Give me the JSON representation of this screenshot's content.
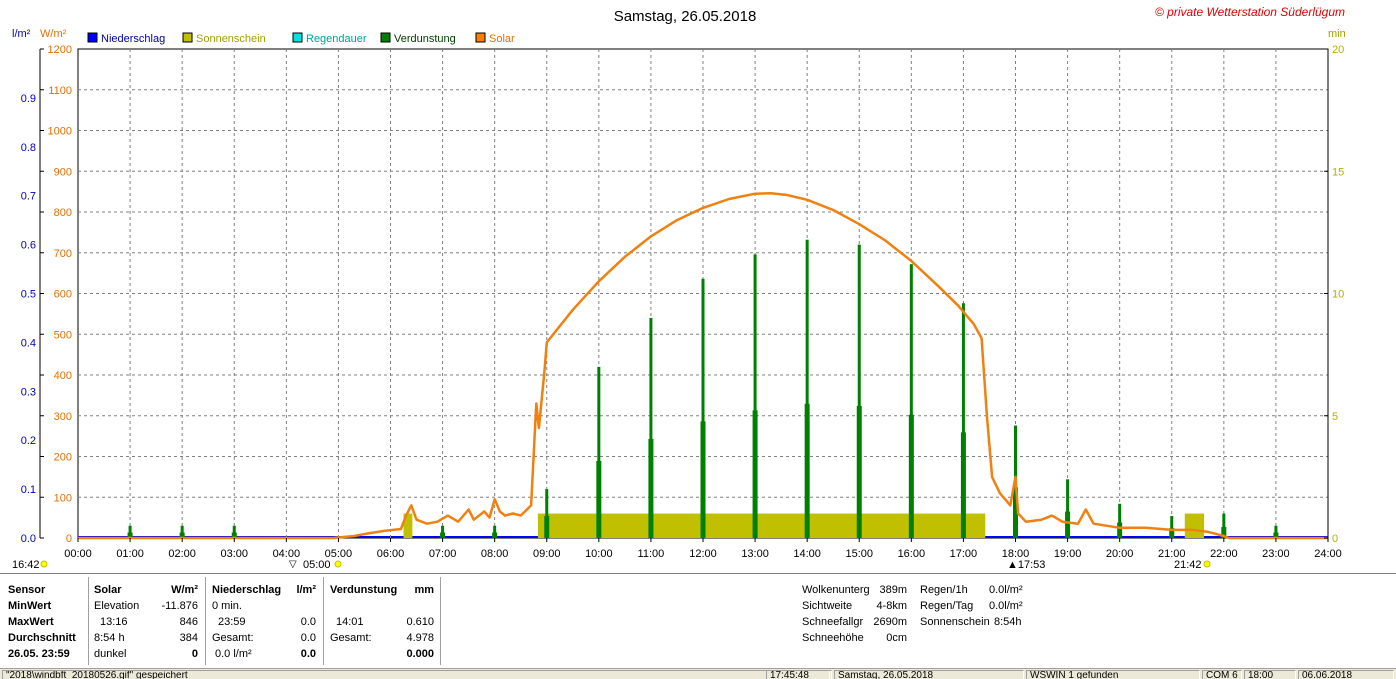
{
  "header": {
    "title": "Samstag, 26.05.2018",
    "watermark": "© private Wetterstation Süderlügum",
    "unit_left1": "l/m²",
    "unit_left2": "W/m²",
    "unit_right": "min"
  },
  "chart_data": {
    "type": "bar",
    "title": "Samstag, 26.05.2018",
    "x": {
      "min": 0,
      "max": 24,
      "tick_labels": [
        "00:00",
        "01:00",
        "02:00",
        "03:00",
        "04:00",
        "05:00",
        "06:00",
        "07:00",
        "08:00",
        "09:00",
        "10:00",
        "11:00",
        "12:00",
        "13:00",
        "14:00",
        "15:00",
        "16:00",
        "17:00",
        "18:00",
        "19:00",
        "20:00",
        "21:00",
        "22:00",
        "23:00",
        "24:00"
      ]
    },
    "y_left_precip": {
      "min": 0,
      "max": 1.0,
      "unit": "l/m²",
      "tick_labels": [
        "0.0",
        "0.1",
        "0.2",
        "0.3",
        "0.4",
        "0.5",
        "0.6",
        "0.7",
        "0.8",
        "0.9"
      ],
      "color": "#0000c0"
    },
    "y_left_solar": {
      "min": 0,
      "max": 1200,
      "unit": "W/m²",
      "tick_labels": [
        "0",
        "100",
        "200",
        "300",
        "400",
        "500",
        "600",
        "700",
        "800",
        "900",
        "1000",
        "1100",
        "1200"
      ],
      "color": "#e07000"
    },
    "y_right_minutes": {
      "min": 0,
      "max": 20,
      "unit": "min",
      "tick_labels": [
        "0",
        "5",
        "10",
        "15",
        "20"
      ],
      "color": "#b0b000"
    },
    "grid": true,
    "legend_position": "top-left",
    "legend": [
      {
        "label": "Niederschlag",
        "color": "#0000ff",
        "text_color": "#0000a0"
      },
      {
        "label": "Sonnenschein",
        "color": "#c0c000",
        "text_color": "#a0a000"
      },
      {
        "label": "Regendauer",
        "color": "#00e0e0",
        "text_color": "#00a0a0"
      },
      {
        "label": "Verdunstung",
        "color": "#008000",
        "text_color": "#004000"
      },
      {
        "label": "Solar",
        "color": "#ff8000",
        "text_color": "#e07000"
      }
    ],
    "series": [
      {
        "name": "Solar",
        "kind": "line",
        "axis": "solar",
        "color": "#f08010",
        "points": [
          [
            0,
            0
          ],
          [
            4.9,
            0
          ],
          [
            5.3,
            5
          ],
          [
            5.6,
            12
          ],
          [
            5.9,
            18
          ],
          [
            6.2,
            22
          ],
          [
            6.3,
            55
          ],
          [
            6.4,
            80
          ],
          [
            6.5,
            45
          ],
          [
            6.7,
            35
          ],
          [
            6.9,
            40
          ],
          [
            7.1,
            55
          ],
          [
            7.3,
            40
          ],
          [
            7.5,
            70
          ],
          [
            7.6,
            45
          ],
          [
            7.8,
            65
          ],
          [
            7.9,
            50
          ],
          [
            8.0,
            95
          ],
          [
            8.1,
            65
          ],
          [
            8.2,
            55
          ],
          [
            8.35,
            60
          ],
          [
            8.5,
            55
          ],
          [
            8.7,
            80
          ],
          [
            8.8,
            330
          ],
          [
            8.85,
            270
          ],
          [
            8.95,
            400
          ],
          [
            9.0,
            480
          ],
          [
            9.5,
            560
          ],
          [
            10.0,
            630
          ],
          [
            10.5,
            690
          ],
          [
            11.0,
            740
          ],
          [
            11.5,
            780
          ],
          [
            12.0,
            810
          ],
          [
            12.5,
            832
          ],
          [
            13.0,
            845
          ],
          [
            13.3,
            846
          ],
          [
            13.6,
            842
          ],
          [
            14.0,
            830
          ],
          [
            14.5,
            805
          ],
          [
            15.0,
            770
          ],
          [
            15.5,
            730
          ],
          [
            16.0,
            680
          ],
          [
            16.5,
            620
          ],
          [
            16.9,
            570
          ],
          [
            17.2,
            525
          ],
          [
            17.35,
            490
          ],
          [
            17.45,
            300
          ],
          [
            17.55,
            150
          ],
          [
            17.7,
            110
          ],
          [
            17.9,
            80
          ],
          [
            18.0,
            150
          ],
          [
            18.05,
            60
          ],
          [
            18.2,
            40
          ],
          [
            18.5,
            45
          ],
          [
            18.7,
            55
          ],
          [
            18.9,
            40
          ],
          [
            19.2,
            35
          ],
          [
            19.35,
            70
          ],
          [
            19.5,
            35
          ],
          [
            20.0,
            25
          ],
          [
            20.5,
            25
          ],
          [
            21.0,
            20
          ],
          [
            21.4,
            20
          ],
          [
            21.7,
            15
          ],
          [
            22.0,
            5
          ],
          [
            22.1,
            0
          ],
          [
            24,
            0
          ]
        ]
      },
      {
        "name": "Sonnenschein",
        "kind": "bars",
        "axis": "minutes",
        "color": "#c0c000",
        "bars": [
          [
            6.25,
            6.42,
            1
          ],
          [
            8.83,
            17.42,
            1
          ],
          [
            21.25,
            21.62,
            1
          ]
        ]
      },
      {
        "name": "Verdunstung",
        "kind": "spikes",
        "axis": "precip",
        "color": "#008000",
        "spikes": [
          [
            1.0,
            0.025
          ],
          [
            2.0,
            0.025
          ],
          [
            3.0,
            0.025
          ],
          [
            7.0,
            0.025
          ],
          [
            8.0,
            0.025
          ],
          [
            9.0,
            0.1
          ],
          [
            10.0,
            0.35
          ],
          [
            11.0,
            0.45
          ],
          [
            12.0,
            0.53
          ],
          [
            13.0,
            0.58
          ],
          [
            14.0,
            0.61
          ],
          [
            15.0,
            0.6
          ],
          [
            16.0,
            0.56
          ],
          [
            17.0,
            0.48
          ],
          [
            18.0,
            0.23
          ],
          [
            19.0,
            0.12
          ],
          [
            20.0,
            0.07
          ],
          [
            21.0,
            0.045
          ],
          [
            22.0,
            0.05
          ],
          [
            23.0,
            0.025
          ]
        ]
      }
    ],
    "astro_markers": {
      "sunrise": "05:00",
      "sunset": "21:42",
      "left_time": "16:42",
      "marker_1753": "17:53",
      "marker_0400": "▽"
    }
  },
  "panel": {
    "col1": {
      "sensor": "Sensor",
      "min": "MinWert",
      "max": "MaxWert",
      "avg": "Durchschnitt",
      "date": "26.05. 23:59"
    },
    "solar": {
      "title": "Solar",
      "unit": "W/m²",
      "min_label": "Elevation",
      "min_val": "-11.876",
      "max_time": "13:16",
      "max_val": "846",
      "avg_label": "8:54 h",
      "avg_val": "384",
      "last_label": "dunkel",
      "last_val": "0"
    },
    "precip": {
      "title": "Niederschlag",
      "unit": "l/m²",
      "min_label": "0 min.",
      "max_time": "23:59",
      "max_val": "0.0",
      "avg_label": "Gesamt:",
      "avg_val": "0.0",
      "last_label": "0.0 l/m²",
      "last_val": "0.0"
    },
    "evap": {
      "title": "Verdunstung",
      "unit": "mm",
      "max_time": "14:01",
      "max_val": "0.610",
      "avg_label": "Gesamt:",
      "avg_val": "4.978",
      "last_val": "0.000"
    },
    "extra": [
      {
        "label": "Wolkenunterg",
        "value": "389m"
      },
      {
        "label": "Sichtweite",
        "value": "4-8km"
      },
      {
        "label": "Schneefallgr",
        "value": "2690m"
      },
      {
        "label": "Schneehöhe",
        "value": "0cm"
      }
    ],
    "rain": [
      {
        "label": "Regen/1h",
        "value": "0.0l/m²"
      },
      {
        "label": "Regen/Tag",
        "value": "0.0l/m²"
      },
      {
        "label": "Sonnenschein",
        "value": "8:54h"
      }
    ]
  },
  "statusbar": {
    "file": "\"2018\\windbft_20180526.gif\" gespeichert",
    "time": "17:45:48",
    "date": "Samstag, 26.05.2018",
    "device": "WSWIN 1 gefunden",
    "com": "COM 6",
    "clock": "18:00",
    "date2": "06.06.2018"
  }
}
